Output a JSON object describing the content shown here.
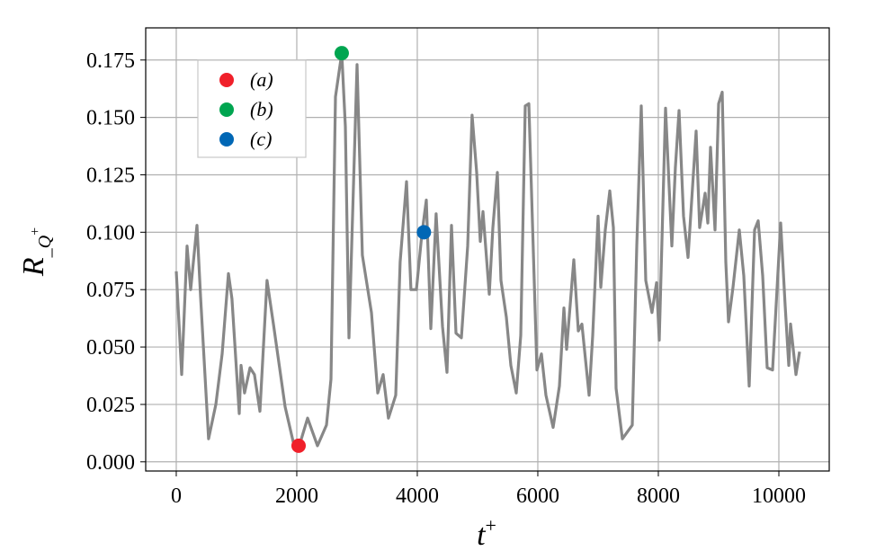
{
  "chart_data": {
    "type": "line",
    "title": "",
    "xlabel": "t+",
    "ylabel": "R_Q+",
    "xlim": [
      -507,
      10836
    ],
    "ylim": [
      -0.004,
      0.189
    ],
    "grid": true,
    "legend_placement": "top-left",
    "x_ticks": [
      0,
      2000,
      4000,
      6000,
      8000,
      10000
    ],
    "x_tick_labels": [
      "0",
      "2000",
      "4000",
      "6000",
      "8000",
      "10000"
    ],
    "y_ticks": [
      0,
      0.025,
      0.05,
      0.075,
      0.1,
      0.125,
      0.15,
      0.175
    ],
    "y_tick_labels": [
      "0.000",
      "0.025",
      "0.050",
      "0.075",
      "0.100",
      "0.125",
      "0.150",
      "0.175"
    ],
    "series": [
      {
        "name": "R_Q+",
        "color": "#878787",
        "x": [
          0,
          90,
          179,
          239,
          343,
          403,
          537,
          657,
          761,
          866,
          925,
          1045,
          1075,
          1134,
          1224,
          1298,
          1388,
          1507,
          1612,
          1806,
          1955,
          2030,
          2179,
          2343,
          2493,
          2567,
          2642,
          2746,
          2806,
          2866,
          3000,
          3089,
          3239,
          3343,
          3433,
          3522,
          3642,
          3716,
          3821,
          3895,
          3985,
          4075,
          4149,
          4224,
          4313,
          4418,
          4493,
          4567,
          4642,
          4731,
          4836,
          4910,
          4985,
          5045,
          5090,
          5194,
          5254,
          5328,
          5388,
          5478,
          5552,
          5642,
          5716,
          5791,
          5851,
          5985,
          6060,
          6134,
          6254,
          6358,
          6433,
          6478,
          6597,
          6672,
          6731,
          6851,
          6910,
          7000,
          7045,
          7119,
          7194,
          7254,
          7299,
          7403,
          7567,
          7642,
          7716,
          7791,
          7895,
          7970,
          8015,
          8119,
          8224,
          8283,
          8343,
          8418,
          8493,
          8627,
          8686,
          8776,
          8821,
          8866,
          8940,
          9000,
          9060,
          9119,
          9164,
          9239,
          9343,
          9418,
          9507,
          9597,
          9657,
          9731,
          9806,
          9895,
          10030,
          10104,
          10164,
          10194,
          10284,
          10343
        ],
        "y": [
          0.083,
          0.038,
          0.094,
          0.075,
          0.103,
          0.072,
          0.01,
          0.025,
          0.047,
          0.082,
          0.071,
          0.021,
          0.042,
          0.03,
          0.041,
          0.038,
          0.022,
          0.079,
          0.06,
          0.024,
          0.007,
          0.006,
          0.019,
          0.007,
          0.016,
          0.036,
          0.159,
          0.178,
          0.146,
          0.054,
          0.173,
          0.09,
          0.065,
          0.03,
          0.038,
          0.019,
          0.029,
          0.087,
          0.122,
          0.075,
          0.075,
          0.099,
          0.114,
          0.058,
          0.108,
          0.059,
          0.039,
          0.103,
          0.056,
          0.054,
          0.094,
          0.151,
          0.126,
          0.096,
          0.109,
          0.073,
          0.102,
          0.126,
          0.079,
          0.063,
          0.042,
          0.03,
          0.055,
          0.155,
          0.156,
          0.04,
          0.047,
          0.029,
          0.015,
          0.033,
          0.067,
          0.049,
          0.088,
          0.057,
          0.06,
          0.029,
          0.055,
          0.107,
          0.076,
          0.101,
          0.118,
          0.102,
          0.032,
          0.01,
          0.016,
          0.094,
          0.155,
          0.079,
          0.065,
          0.078,
          0.053,
          0.154,
          0.094,
          0.128,
          0.153,
          0.107,
          0.089,
          0.144,
          0.102,
          0.117,
          0.104,
          0.137,
          0.101,
          0.156,
          0.161,
          0.087,
          0.061,
          0.076,
          0.101,
          0.081,
          0.033,
          0.101,
          0.105,
          0.081,
          0.041,
          0.04,
          0.104,
          0.068,
          0.042,
          0.06,
          0.038,
          0.048
        ]
      }
    ],
    "markers": [
      {
        "label": "(a)",
        "x": 2030,
        "y": 0.007,
        "color": "#f0202a"
      },
      {
        "label": "(b)",
        "x": 2746,
        "y": 0.178,
        "color": "#00a550"
      },
      {
        "label": "(c)",
        "x": 4110,
        "y": 0.1,
        "color": "#0067b5"
      }
    ]
  }
}
